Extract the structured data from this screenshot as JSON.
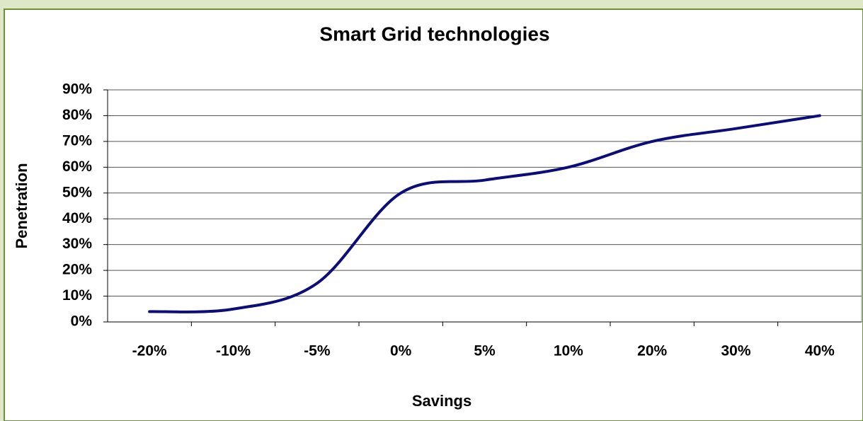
{
  "chart_data": {
    "type": "line",
    "title": "Smart Grid technologies",
    "x_label": "Savings",
    "y_label": "Penetration",
    "categories": [
      "-20%",
      "-10%",
      "-5%",
      "0%",
      "5%",
      "10%",
      "20%",
      "30%",
      "40%"
    ],
    "series": [
      {
        "name": "Penetration",
        "color": "#0d0d7a",
        "values": [
          4,
          5,
          15,
          50,
          55,
          60,
          70,
          75,
          80
        ]
      }
    ],
    "ylim": [
      0,
      90
    ],
    "yticks": [
      {
        "value": 0,
        "label": "0%"
      },
      {
        "value": 10,
        "label": "10%"
      },
      {
        "value": 20,
        "label": "20%"
      },
      {
        "value": 30,
        "label": "30%"
      },
      {
        "value": 40,
        "label": "40%"
      },
      {
        "value": 50,
        "label": "50%"
      },
      {
        "value": 60,
        "label": "60%"
      },
      {
        "value": 70,
        "label": "70%"
      },
      {
        "value": 80,
        "label": "80%"
      },
      {
        "value": 90,
        "label": "90%"
      }
    ],
    "grid": true
  }
}
